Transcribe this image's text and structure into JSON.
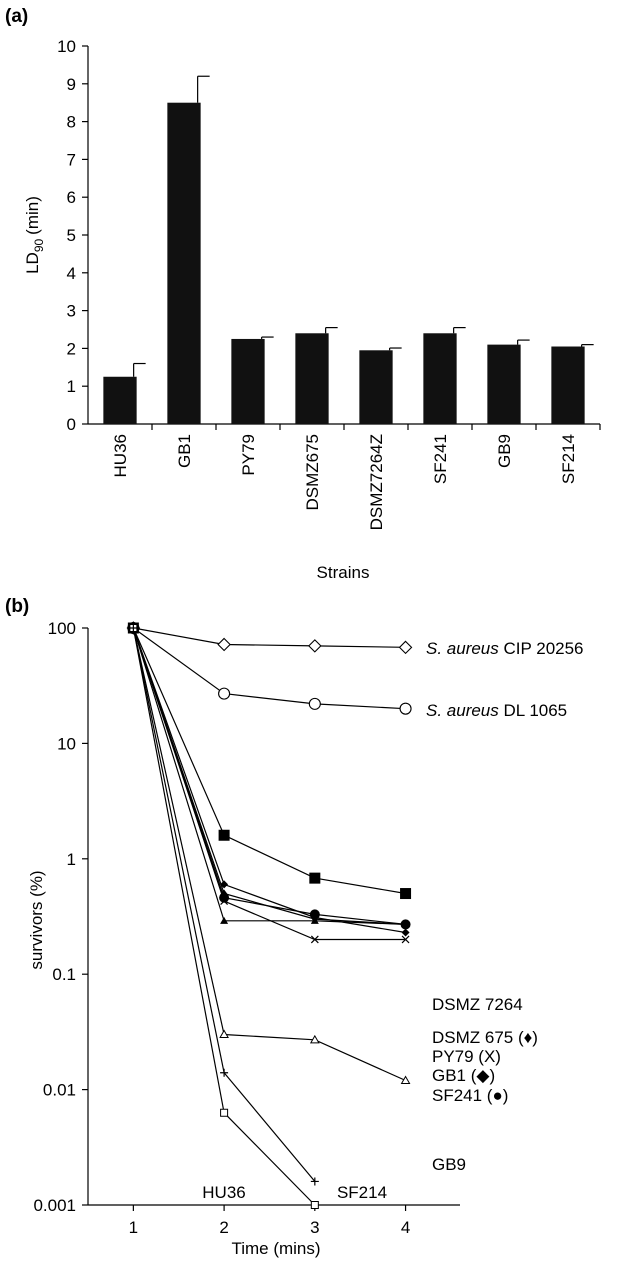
{
  "chart_data": [
    {
      "panel": "(a)",
      "type": "bar",
      "ylabel": "LD",
      "ylabel_sub": "90",
      "ylabel_unit": "(min)",
      "xlabel": "Strains",
      "categories": [
        "HU36",
        "GB1",
        "PY79",
        "DSMZ675",
        "DSMZ7264Z",
        "SF241",
        "GB9",
        "SF214"
      ],
      "values": [
        1.25,
        8.5,
        2.25,
        2.4,
        1.95,
        2.4,
        2.1,
        2.05
      ],
      "errors": [
        0.35,
        0.7,
        0.05,
        0.15,
        0.06,
        0.15,
        0.12,
        0.05
      ],
      "ylim": [
        0,
        10
      ],
      "yticks": [
        "0",
        "1",
        "2",
        "3",
        "4",
        "5",
        "6",
        "7",
        "8",
        "9",
        "10"
      ],
      "bar_color": "#111111",
      "grid": false
    },
    {
      "panel": "(b)",
      "type": "line",
      "yscale": "log",
      "ylabel": "survivors (%)",
      "xlabel": "Time (mins)",
      "xlim": [
        0.5,
        4.6
      ],
      "ylim": [
        0.001,
        100
      ],
      "xticks": [
        "1",
        "2",
        "3",
        "4"
      ],
      "yticks": [
        "0.001",
        "0.01",
        "0.1",
        "1",
        "10",
        "100"
      ],
      "grid": false,
      "series": [
        {
          "name": "S. aureus CIP 20256",
          "name_italic": "S. aureus",
          "name_rest": " CIP 20256",
          "marker": "diamond-open",
          "x": [
            1,
            2,
            3,
            4
          ],
          "y": [
            100,
            72,
            70,
            68
          ]
        },
        {
          "name": "S. aureus DL 1065",
          "name_italic": "S. aureus",
          "name_rest": " DL 1065",
          "marker": "circle-open",
          "x": [
            1,
            2,
            3,
            4
          ],
          "y": [
            100,
            27,
            22,
            20
          ]
        },
        {
          "name": "DSMZ 7264",
          "marker": "square-filled",
          "x": [
            1,
            2,
            3,
            4
          ],
          "y": [
            100,
            1.6,
            0.68,
            0.5
          ]
        },
        {
          "name": "DSMZ 675 (♦)",
          "marker": "diamond-small",
          "x": [
            1,
            2,
            3,
            4
          ],
          "y": [
            100,
            0.5,
            0.3,
            0.27
          ]
        },
        {
          "name": "PY79 (X)",
          "marker": "x",
          "x": [
            1,
            2,
            3,
            4
          ],
          "y": [
            100,
            0.43,
            0.2,
            0.2
          ]
        },
        {
          "name": "GB1 (◆)",
          "marker": "diamond-filled",
          "x": [
            1,
            2,
            3,
            4
          ],
          "y": [
            100,
            0.6,
            0.31,
            0.23
          ]
        },
        {
          "name": "SF241 (●)",
          "marker": "circle-filled",
          "x": [
            1,
            2,
            3,
            4
          ],
          "y": [
            100,
            0.46,
            0.33,
            0.27
          ]
        },
        {
          "name": "",
          "marker": "triangle-filled",
          "x": [
            1,
            2,
            3,
            4
          ],
          "y": [
            100,
            0.29,
            0.29,
            0.27
          ]
        },
        {
          "name": "GB9",
          "marker": "triangle-open",
          "x": [
            1,
            2,
            3,
            4
          ],
          "y": [
            100,
            0.03,
            0.027,
            0.012
          ]
        },
        {
          "name": "HU36",
          "marker": "square-open",
          "x": [
            1,
            2,
            3
          ],
          "y": [
            100,
            0.0063,
            0.001
          ]
        },
        {
          "name": "SF214",
          "marker": "plus",
          "x": [
            1,
            2,
            3
          ],
          "y": [
            100,
            0.014,
            0.0016
          ]
        }
      ]
    }
  ]
}
